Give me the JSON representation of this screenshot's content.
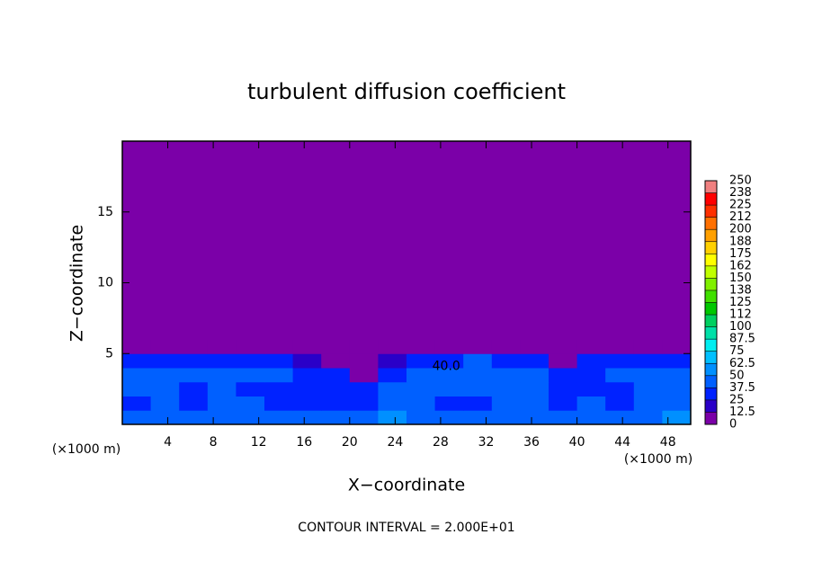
{
  "chart_data": {
    "type": "contour",
    "title": "turbulent diffusion coefficient",
    "xlabel": "X−coordinate",
    "ylabel": "Z−coordinate",
    "x_unit": "(×1000 m)",
    "y_unit": "(×1000 m)",
    "footnote": "CONTOUR INTERVAL = 2.000E+01",
    "annotation": {
      "text": "40.0",
      "x": 28.5,
      "z": 4.1
    },
    "xlim": [
      0,
      50
    ],
    "ylim": [
      0,
      20
    ],
    "xticks": [
      4,
      8,
      12,
      16,
      20,
      24,
      28,
      32,
      36,
      40,
      44,
      48
    ],
    "yticks": [
      5,
      10,
      15
    ],
    "cell_x": [
      0,
      2.5,
      5,
      7.5,
      10,
      12.5,
      15,
      17.5,
      20,
      22.5,
      25,
      27.5,
      30,
      32.5,
      35,
      37.5,
      40,
      42.5,
      45,
      47.5,
      50
    ],
    "cell_z": [
      0,
      1,
      2,
      3,
      4,
      5,
      6
    ],
    "z": [
      [
        45,
        40,
        40,
        45,
        45,
        40,
        40,
        45,
        40,
        50,
        45,
        45,
        40,
        45,
        40,
        40,
        45,
        40,
        45,
        50
      ],
      [
        35,
        45,
        35,
        40,
        40,
        35,
        30,
        30,
        35,
        40,
        40,
        35,
        35,
        45,
        40,
        35,
        40,
        30,
        40,
        45
      ],
      [
        40,
        40,
        35,
        40,
        35,
        35,
        35,
        35,
        30,
        40,
        40,
        45,
        40,
        45,
        40,
        35,
        35,
        35,
        40,
        40
      ],
      [
        40,
        40,
        40,
        40,
        40,
        40,
        35,
        30,
        10,
        35,
        40,
        40,
        45,
        40,
        40,
        35,
        35,
        40,
        40,
        40
      ],
      [
        35,
        30,
        35,
        35,
        35,
        30,
        20,
        10,
        5,
        20,
        35,
        25,
        40,
        35,
        30,
        10,
        30,
        35,
        35,
        30
      ],
      [
        0,
        0,
        5,
        10,
        10,
        5,
        0,
        0,
        0,
        0,
        5,
        10,
        10,
        10,
        0,
        0,
        0,
        10,
        10,
        0
      ]
    ],
    "levels": [
      0,
      {
        "value": 12.5,
        "label": "12.5"
      },
      25,
      {
        "value": 37.5,
        "label": "37.5"
      },
      50,
      {
        "value": 62.5,
        "label": "62.5"
      },
      75,
      {
        "value": 87.5,
        "label": "87.5"
      },
      100,
      {
        "value": 112.5,
        "label": "112"
      },
      125,
      {
        "value": 137.5,
        "label": "138"
      },
      150,
      {
        "value": 162.5,
        "label": "162"
      },
      175,
      {
        "value": 187.5,
        "label": "188"
      },
      200,
      {
        "value": 212.5,
        "label": "212"
      },
      225,
      {
        "value": 237.5,
        "label": "238"
      },
      250
    ],
    "colors": [
      "#7b00a8",
      "#2a00c8",
      "#0022ff",
      "#0060ff",
      "#0090ff",
      "#00c0ff",
      "#00eef0",
      "#00e0a8",
      "#00d060",
      "#00c800",
      "#40e000",
      "#80f000",
      "#c0ff00",
      "#ffff00",
      "#ffd000",
      "#ffa000",
      "#ff7000",
      "#ff3000",
      "#ff0000",
      "#f08080"
    ]
  }
}
